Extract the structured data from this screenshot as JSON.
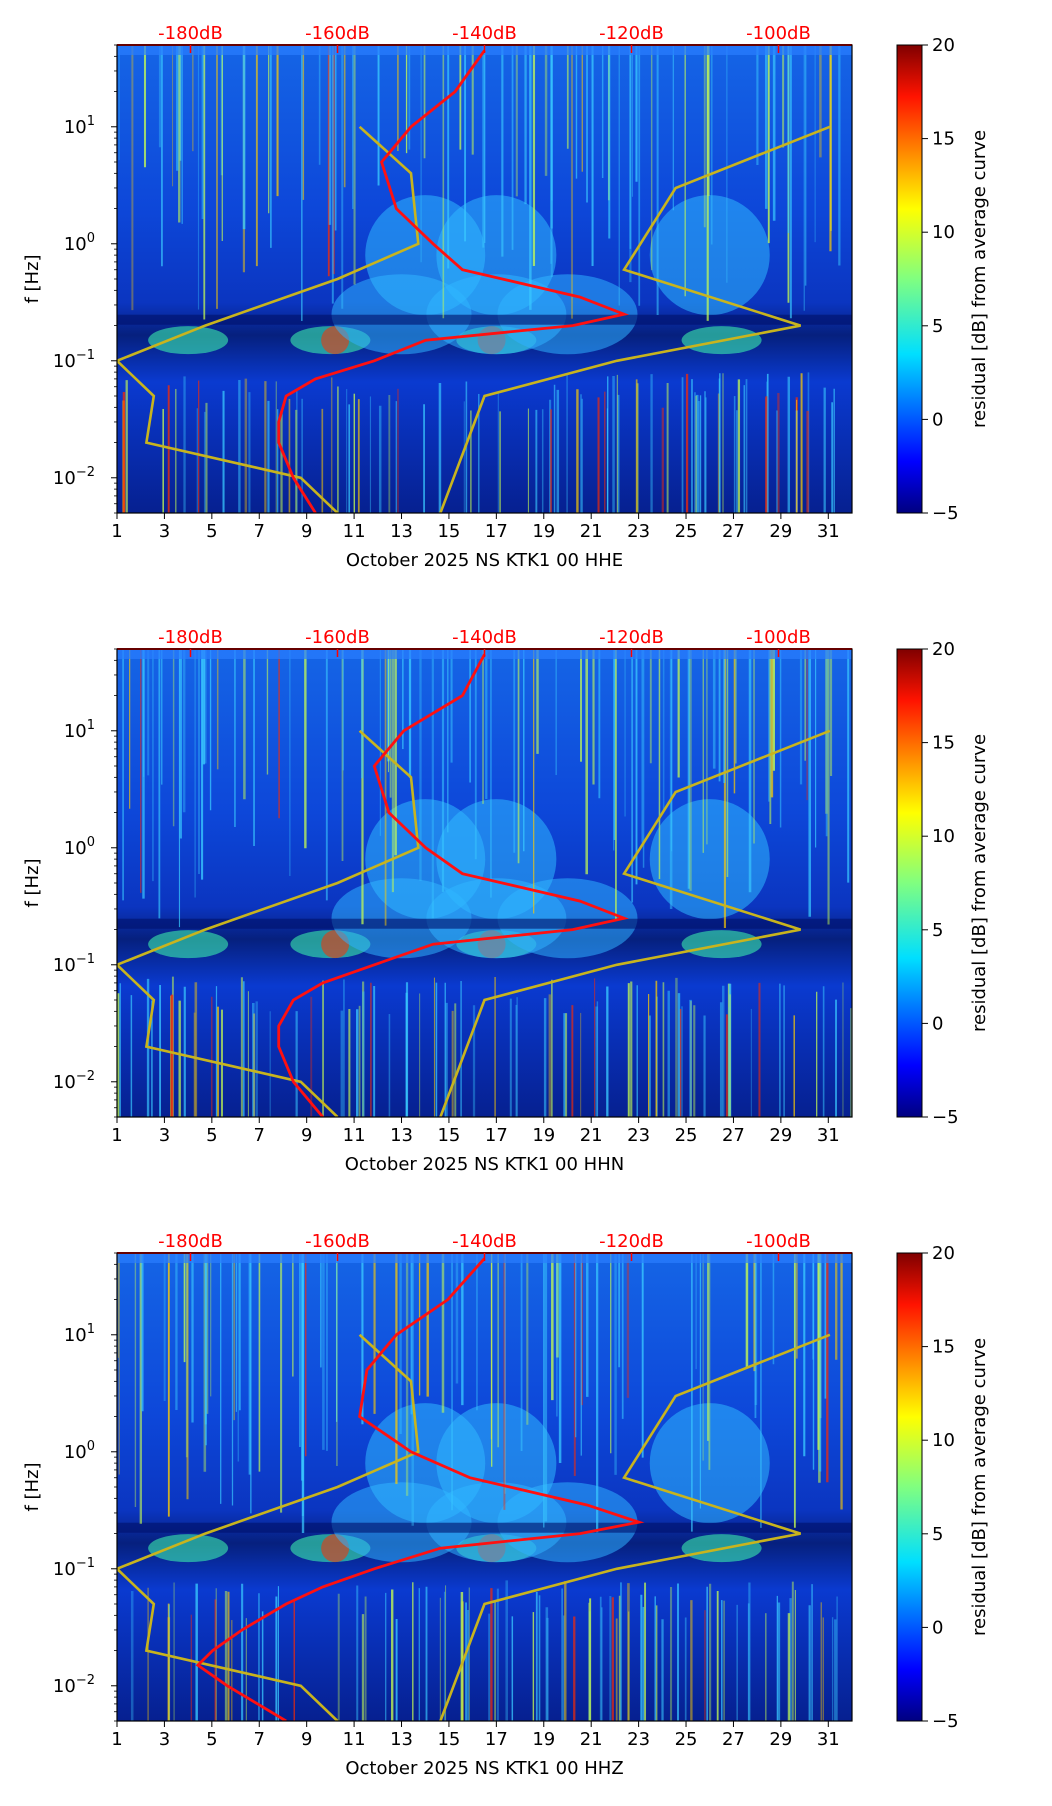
{
  "chart_data": [
    {
      "type": "heatmap",
      "xlabel": "October 2025 NS KTK1 00 HHE",
      "ylabel": "f [Hz]",
      "colorbar_label": "residual [dB] from average curve",
      "x_ticks": [
        "1",
        "3",
        "5",
        "7",
        "9",
        "11",
        "13",
        "15",
        "17",
        "19",
        "21",
        "23",
        "25",
        "27",
        "29",
        "31"
      ],
      "y_ticks": [
        {
          "base": "10",
          "exp": "1",
          "value": 10
        },
        {
          "base": "10",
          "exp": "0",
          "value": 1
        },
        {
          "base": "10",
          "exp": "−1",
          "value": 0.1
        },
        {
          "base": "10",
          "exp": "−2",
          "value": 0.01
        }
      ],
      "db_ticks": [
        "-180dB",
        "-160dB",
        "-140dB",
        "-120dB",
        "-100dB"
      ],
      "colorbar_ticks": [
        "20",
        "15",
        "10",
        "5",
        "0",
        "−5"
      ],
      "clim": [
        -5,
        20
      ],
      "xlim": [
        1,
        32
      ],
      "ylim_hz": [
        0.005,
        50
      ],
      "db_range": [
        -190,
        -90
      ],
      "nlnm_db": [
        [
          0.005,
          -160
        ],
        [
          0.01,
          -165
        ],
        [
          0.02,
          -186
        ],
        [
          0.05,
          -185
        ],
        [
          0.1,
          -190
        ],
        [
          0.2,
          -178
        ],
        [
          0.5,
          -160
        ],
        [
          1,
          -149
        ],
        [
          4,
          -150
        ],
        [
          10,
          -157
        ]
      ],
      "nhnm_db": [
        [
          0.005,
          -146
        ],
        [
          0.05,
          -140
        ],
        [
          0.1,
          -122
        ],
        [
          0.2,
          -97
        ],
        [
          0.6,
          -121
        ],
        [
          3,
          -114
        ],
        [
          10,
          -93
        ]
      ],
      "average_db": [
        [
          0.005,
          -163
        ],
        [
          0.01,
          -166
        ],
        [
          0.02,
          -168
        ],
        [
          0.03,
          -168
        ],
        [
          0.05,
          -167
        ],
        [
          0.07,
          -163
        ],
        [
          0.1,
          -155
        ],
        [
          0.15,
          -148
        ],
        [
          0.2,
          -128
        ],
        [
          0.25,
          -121
        ],
        [
          0.35,
          -127
        ],
        [
          0.6,
          -143
        ],
        [
          1,
          -147
        ],
        [
          2,
          -152
        ],
        [
          5,
          -154
        ],
        [
          10,
          -150
        ],
        [
          20,
          -144
        ],
        [
          45,
          -140
        ]
      ]
    },
    {
      "type": "heatmap",
      "xlabel": "October 2025 NS KTK1 00 HHN",
      "ylabel": "f [Hz]",
      "colorbar_label": "residual [dB] from average curve",
      "x_ticks": [
        "1",
        "3",
        "5",
        "7",
        "9",
        "11",
        "13",
        "15",
        "17",
        "19",
        "21",
        "23",
        "25",
        "27",
        "29",
        "31"
      ],
      "y_ticks": [
        {
          "base": "10",
          "exp": "1",
          "value": 10
        },
        {
          "base": "10",
          "exp": "0",
          "value": 1
        },
        {
          "base": "10",
          "exp": "−1",
          "value": 0.1
        },
        {
          "base": "10",
          "exp": "−2",
          "value": 0.01
        }
      ],
      "db_ticks": [
        "-180dB",
        "-160dB",
        "-140dB",
        "-120dB",
        "-100dB"
      ],
      "colorbar_ticks": [
        "20",
        "15",
        "10",
        "5",
        "0",
        "−5"
      ],
      "clim": [
        -5,
        20
      ],
      "xlim": [
        1,
        32
      ],
      "ylim_hz": [
        0.005,
        50
      ],
      "db_range": [
        -190,
        -90
      ],
      "nlnm_db": [
        [
          0.005,
          -160
        ],
        [
          0.01,
          -165
        ],
        [
          0.02,
          -186
        ],
        [
          0.05,
          -185
        ],
        [
          0.1,
          -190
        ],
        [
          0.2,
          -178
        ],
        [
          0.5,
          -160
        ],
        [
          1,
          -149
        ],
        [
          4,
          -150
        ],
        [
          10,
          -157
        ]
      ],
      "nhnm_db": [
        [
          0.005,
          -146
        ],
        [
          0.05,
          -140
        ],
        [
          0.1,
          -122
        ],
        [
          0.2,
          -97
        ],
        [
          0.6,
          -121
        ],
        [
          3,
          -114
        ],
        [
          10,
          -93
        ]
      ],
      "average_db": [
        [
          0.005,
          -162
        ],
        [
          0.01,
          -166
        ],
        [
          0.02,
          -168
        ],
        [
          0.03,
          -168
        ],
        [
          0.05,
          -166
        ],
        [
          0.07,
          -162
        ],
        [
          0.1,
          -155
        ],
        [
          0.15,
          -147
        ],
        [
          0.2,
          -128
        ],
        [
          0.25,
          -121
        ],
        [
          0.35,
          -127
        ],
        [
          0.6,
          -143
        ],
        [
          1,
          -148
        ],
        [
          2,
          -153
        ],
        [
          5,
          -155
        ],
        [
          10,
          -151
        ],
        [
          20,
          -143
        ],
        [
          45,
          -140
        ]
      ]
    },
    {
      "type": "heatmap",
      "xlabel": "October 2025 NS KTK1 00 HHZ",
      "ylabel": "f [Hz]",
      "colorbar_label": "residual [dB] from average curve",
      "x_ticks": [
        "1",
        "3",
        "5",
        "7",
        "9",
        "11",
        "13",
        "15",
        "17",
        "19",
        "21",
        "23",
        "25",
        "27",
        "29",
        "31"
      ],
      "y_ticks": [
        {
          "base": "10",
          "exp": "1",
          "value": 10
        },
        {
          "base": "10",
          "exp": "0",
          "value": 1
        },
        {
          "base": "10",
          "exp": "−1",
          "value": 0.1
        },
        {
          "base": "10",
          "exp": "−2",
          "value": 0.01
        }
      ],
      "db_ticks": [
        "-180dB",
        "-160dB",
        "-140dB",
        "-120dB",
        "-100dB"
      ],
      "colorbar_ticks": [
        "20",
        "15",
        "10",
        "5",
        "0",
        "−5"
      ],
      "clim": [
        -5,
        20
      ],
      "xlim": [
        1,
        32
      ],
      "ylim_hz": [
        0.005,
        50
      ],
      "db_range": [
        -190,
        -90
      ],
      "nlnm_db": [
        [
          0.005,
          -160
        ],
        [
          0.01,
          -165
        ],
        [
          0.02,
          -186
        ],
        [
          0.05,
          -185
        ],
        [
          0.1,
          -190
        ],
        [
          0.2,
          -178
        ],
        [
          0.5,
          -160
        ],
        [
          1,
          -149
        ],
        [
          4,
          -150
        ],
        [
          10,
          -157
        ]
      ],
      "nhnm_db": [
        [
          0.005,
          -146
        ],
        [
          0.05,
          -140
        ],
        [
          0.1,
          -122
        ],
        [
          0.2,
          -97
        ],
        [
          0.6,
          -121
        ],
        [
          3,
          -114
        ],
        [
          10,
          -93
        ]
      ],
      "average_db": [
        [
          0.005,
          -167
        ],
        [
          0.01,
          -175
        ],
        [
          0.015,
          -179
        ],
        [
          0.02,
          -177
        ],
        [
          0.03,
          -173
        ],
        [
          0.05,
          -167
        ],
        [
          0.07,
          -162
        ],
        [
          0.1,
          -155
        ],
        [
          0.15,
          -146
        ],
        [
          0.2,
          -127
        ],
        [
          0.25,
          -119
        ],
        [
          0.35,
          -126
        ],
        [
          0.6,
          -142
        ],
        [
          1,
          -150
        ],
        [
          2,
          -157
        ],
        [
          5,
          -156
        ],
        [
          10,
          -152
        ],
        [
          20,
          -145
        ],
        [
          45,
          -140
        ]
      ]
    }
  ]
}
